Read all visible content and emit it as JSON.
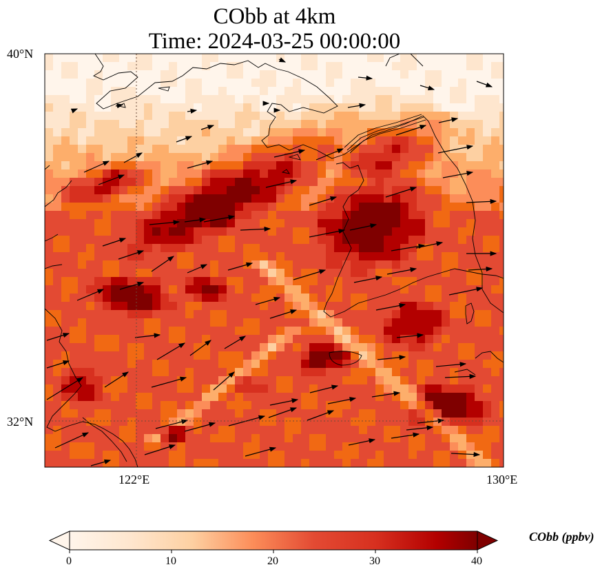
{
  "title_line1": "CObb at 4km",
  "title_line2": "Time: 2024-03-25 00:00:00",
  "axes": {
    "lat_labels": [
      "40°N",
      "32°N"
    ],
    "lon_labels": [
      "122°E",
      "130°E"
    ]
  },
  "colorbar": {
    "label": "CObb (ppbv)",
    "ticks": [
      "0",
      "10",
      "20",
      "30",
      "40"
    ],
    "min": 0,
    "max": 40,
    "extend": "both",
    "colors": [
      "#fff5eb",
      "#fee6ce",
      "#fdd0a2",
      "#fdae6b",
      "#fc8d59",
      "#f16913",
      "#e34a33",
      "#d7301f",
      "#b30000",
      "#7f0000"
    ]
  },
  "colors": {
    "coast": "#000000",
    "gridline": "#6b4a3a",
    "wind_arrow": "#000000"
  }
}
